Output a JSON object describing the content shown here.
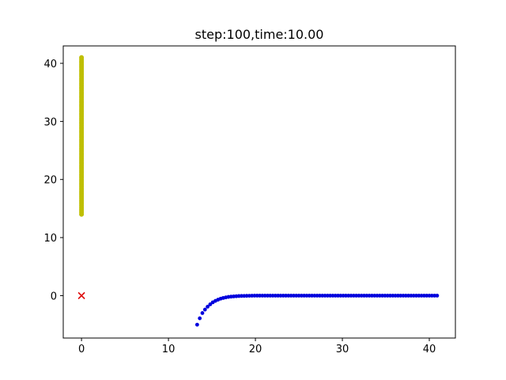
{
  "chart_data": {
    "type": "scatter",
    "title": "step:100,time:10.00",
    "xlabel": "",
    "ylabel": "",
    "xlim": [
      -2.1,
      43.0
    ],
    "ylim": [
      -7.3,
      43.0
    ],
    "xticks": [
      0,
      10,
      20,
      30,
      40
    ],
    "yticks": [
      0,
      10,
      20,
      30,
      40
    ],
    "grid": false,
    "legend": "none",
    "series": [
      {
        "marker": "circle",
        "color": "#bfbf00",
        "points": [
          [
            0,
            14.0
          ],
          [
            0,
            14.3
          ],
          [
            0,
            14.6
          ],
          [
            0,
            14.9
          ],
          [
            0,
            15.2
          ],
          [
            0,
            15.5
          ],
          [
            0,
            15.8
          ],
          [
            0,
            16.1
          ],
          [
            0,
            16.4
          ],
          [
            0,
            16.7
          ],
          [
            0,
            17.0
          ],
          [
            0,
            17.3
          ],
          [
            0,
            17.6
          ],
          [
            0,
            17.9
          ],
          [
            0,
            18.2
          ],
          [
            0,
            18.5
          ],
          [
            0,
            18.8
          ],
          [
            0,
            19.1
          ],
          [
            0,
            19.4
          ],
          [
            0,
            19.7
          ],
          [
            0,
            20.0
          ],
          [
            0,
            20.3
          ],
          [
            0,
            20.6
          ],
          [
            0,
            20.9
          ],
          [
            0,
            21.2
          ],
          [
            0,
            21.5
          ],
          [
            0,
            21.8
          ],
          [
            0,
            22.1
          ],
          [
            0,
            22.4
          ],
          [
            0,
            22.7
          ],
          [
            0,
            23.0
          ],
          [
            0,
            23.3
          ],
          [
            0,
            23.6
          ],
          [
            0,
            23.9
          ],
          [
            0,
            24.2
          ],
          [
            0,
            24.5
          ],
          [
            0,
            24.8
          ],
          [
            0,
            25.1
          ],
          [
            0,
            25.4
          ],
          [
            0,
            25.7
          ],
          [
            0,
            26.0
          ],
          [
            0,
            26.3
          ],
          [
            0,
            26.6
          ],
          [
            0,
            26.9
          ],
          [
            0,
            27.2
          ],
          [
            0,
            27.5
          ],
          [
            0,
            27.8
          ],
          [
            0,
            28.1
          ],
          [
            0,
            28.4
          ],
          [
            0,
            28.7
          ],
          [
            0,
            29.0
          ],
          [
            0,
            29.3
          ],
          [
            0,
            29.6
          ],
          [
            0,
            29.9
          ],
          [
            0,
            30.2
          ],
          [
            0,
            30.5
          ],
          [
            0,
            30.8
          ],
          [
            0,
            31.1
          ],
          [
            0,
            31.4
          ],
          [
            0,
            31.7
          ],
          [
            0,
            32.0
          ],
          [
            0,
            32.3
          ],
          [
            0,
            32.6
          ],
          [
            0,
            32.9
          ],
          [
            0,
            33.2
          ],
          [
            0,
            33.5
          ],
          [
            0,
            33.8
          ],
          [
            0,
            34.1
          ],
          [
            0,
            34.4
          ],
          [
            0,
            34.7
          ],
          [
            0,
            35.0
          ],
          [
            0,
            35.3
          ],
          [
            0,
            35.6
          ],
          [
            0,
            35.9
          ],
          [
            0,
            36.2
          ],
          [
            0,
            36.5
          ],
          [
            0,
            36.8
          ],
          [
            0,
            37.1
          ],
          [
            0,
            37.4
          ],
          [
            0,
            37.7
          ],
          [
            0,
            38.0
          ],
          [
            0,
            38.3
          ],
          [
            0,
            38.6
          ],
          [
            0,
            38.9
          ],
          [
            0,
            39.2
          ],
          [
            0,
            39.5
          ],
          [
            0,
            39.8
          ],
          [
            0,
            40.1
          ],
          [
            0,
            40.4
          ],
          [
            0,
            40.7
          ],
          [
            0,
            41.0
          ]
        ]
      },
      {
        "marker": "circle",
        "color": "#0000dd",
        "points": [
          [
            13.3,
            -5.0
          ],
          [
            13.6,
            -3.9
          ],
          [
            13.9,
            -3.0
          ],
          [
            14.2,
            -2.4
          ],
          [
            14.5,
            -1.9
          ],
          [
            14.8,
            -1.5
          ],
          [
            15.1,
            -1.15
          ],
          [
            15.4,
            -0.9
          ],
          [
            15.7,
            -0.7
          ],
          [
            16.0,
            -0.52
          ],
          [
            16.3,
            -0.4
          ],
          [
            16.6,
            -0.3
          ],
          [
            16.9,
            -0.22
          ],
          [
            17.2,
            -0.17
          ],
          [
            17.5,
            -0.13
          ],
          [
            17.8,
            -0.1
          ],
          [
            18.1,
            -0.07
          ],
          [
            18.4,
            -0.05
          ],
          [
            18.7,
            -0.04
          ],
          [
            19.0,
            -0.03
          ],
          [
            19.3,
            -0.02
          ],
          [
            19.6,
            -0.01
          ],
          [
            19.9,
            0
          ],
          [
            20.2,
            0
          ],
          [
            20.5,
            0
          ],
          [
            20.8,
            0
          ],
          [
            21.1,
            0
          ],
          [
            21.4,
            0
          ],
          [
            21.7,
            0
          ],
          [
            22.0,
            0
          ],
          [
            22.3,
            0
          ],
          [
            22.6,
            0
          ],
          [
            22.9,
            0
          ],
          [
            23.2,
            0
          ],
          [
            23.5,
            0
          ],
          [
            23.8,
            0
          ],
          [
            24.1,
            0
          ],
          [
            24.4,
            0
          ],
          [
            24.7,
            0
          ],
          [
            25.0,
            0
          ],
          [
            25.3,
            0
          ],
          [
            25.6,
            0
          ],
          [
            25.9,
            0
          ],
          [
            26.2,
            0
          ],
          [
            26.5,
            0
          ],
          [
            26.8,
            0
          ],
          [
            27.1,
            0
          ],
          [
            27.4,
            0
          ],
          [
            27.7,
            0
          ],
          [
            28.0,
            0
          ],
          [
            28.3,
            0
          ],
          [
            28.6,
            0
          ],
          [
            28.9,
            0
          ],
          [
            29.2,
            0
          ],
          [
            29.5,
            0
          ],
          [
            29.8,
            0
          ],
          [
            30.1,
            0
          ],
          [
            30.4,
            0
          ],
          [
            30.7,
            0
          ],
          [
            31.0,
            0
          ],
          [
            31.3,
            0
          ],
          [
            31.6,
            0
          ],
          [
            31.9,
            0
          ],
          [
            32.2,
            0
          ],
          [
            32.5,
            0
          ],
          [
            32.8,
            0
          ],
          [
            33.1,
            0
          ],
          [
            33.4,
            0
          ],
          [
            33.7,
            0
          ],
          [
            34.0,
            0
          ],
          [
            34.3,
            0
          ],
          [
            34.6,
            0
          ],
          [
            34.9,
            0
          ],
          [
            35.2,
            0
          ],
          [
            35.5,
            0
          ],
          [
            35.8,
            0
          ],
          [
            36.1,
            0
          ],
          [
            36.4,
            0
          ],
          [
            36.7,
            0
          ],
          [
            37.0,
            0
          ],
          [
            37.3,
            0
          ],
          [
            37.6,
            0
          ],
          [
            37.9,
            0
          ],
          [
            38.2,
            0
          ],
          [
            38.5,
            0
          ],
          [
            38.8,
            0
          ],
          [
            39.1,
            0
          ],
          [
            39.4,
            0
          ],
          [
            39.7,
            0
          ],
          [
            40.0,
            0
          ],
          [
            40.3,
            0
          ],
          [
            40.6,
            0
          ],
          [
            40.9,
            0
          ]
        ]
      },
      {
        "marker": "x",
        "color": "#dd0000",
        "points": [
          [
            0,
            0
          ]
        ]
      }
    ]
  }
}
